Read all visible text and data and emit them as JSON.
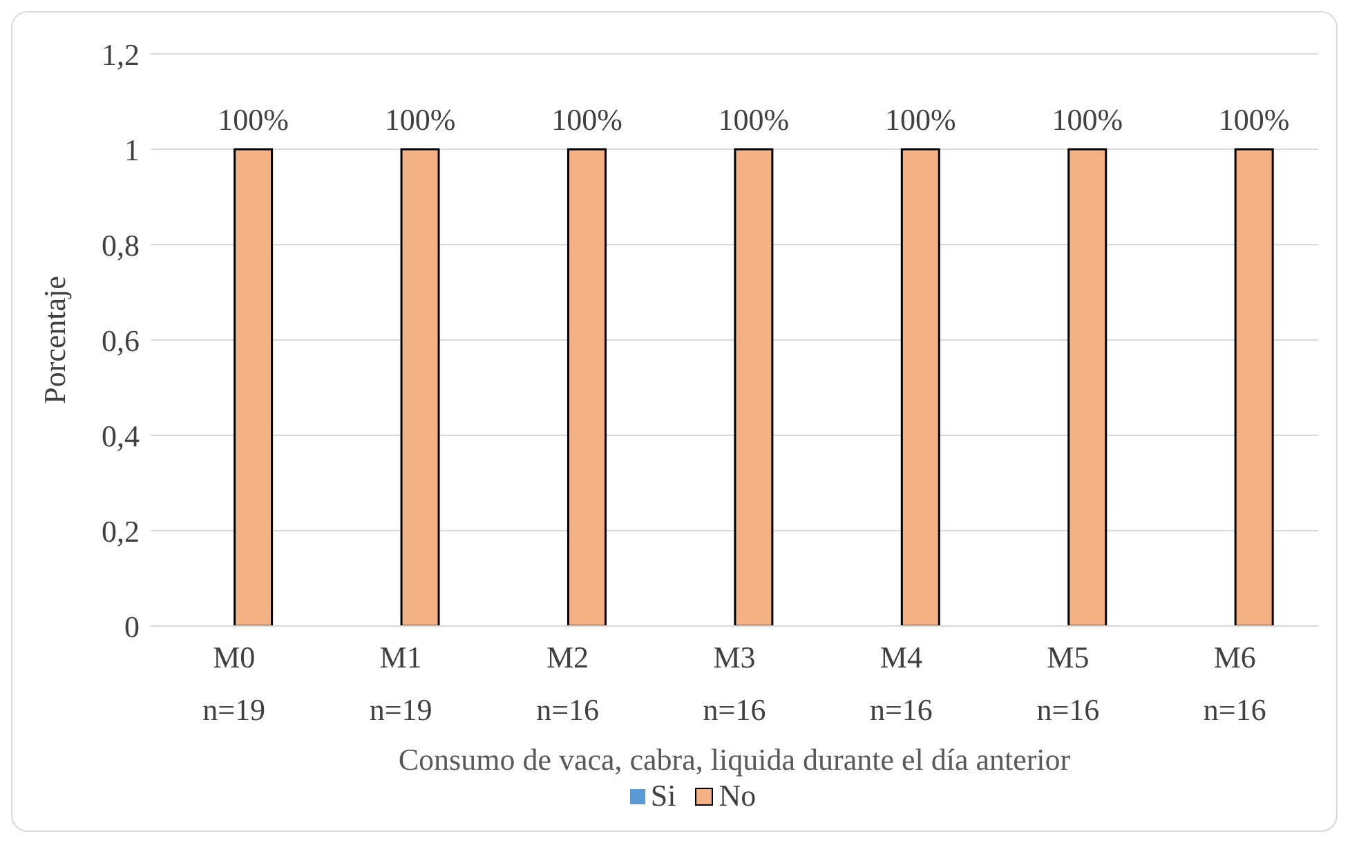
{
  "chart_data": {
    "type": "bar",
    "xlabel": "Consumo de vaca, cabra, liquida durante el día anterior",
    "ylabel": "Porcentaje",
    "categories": [
      "M0\nn=19",
      "M1\nn=19",
      "M2\nn=16",
      "M3\nn=16",
      "M4\nn=16",
      "M5\nn=16",
      "M6\nn=16"
    ],
    "series": [
      {
        "name": "Si",
        "color": "#5b9bd5",
        "values": [
          0,
          0,
          0,
          0,
          0,
          0,
          0
        ]
      },
      {
        "name": "No",
        "color": "#f4b183",
        "values": [
          1,
          1,
          1,
          1,
          1,
          1,
          1
        ],
        "value_labels": [
          "100%",
          "100%",
          "100%",
          "100%",
          "100%",
          "100%",
          "100%"
        ]
      }
    ],
    "ylim": [
      0,
      1.2
    ],
    "yticks": [
      0,
      {
        "value": 0.2,
        "label": "0,2"
      },
      {
        "value": 0.4,
        "label": "0,4"
      },
      {
        "value": 0.6,
        "label": "0,6"
      },
      {
        "value": 0.8,
        "label": "0,8"
      },
      1,
      {
        "value": 1.2,
        "label": "1,2"
      }
    ],
    "grid": "y",
    "legend": "bottom"
  }
}
